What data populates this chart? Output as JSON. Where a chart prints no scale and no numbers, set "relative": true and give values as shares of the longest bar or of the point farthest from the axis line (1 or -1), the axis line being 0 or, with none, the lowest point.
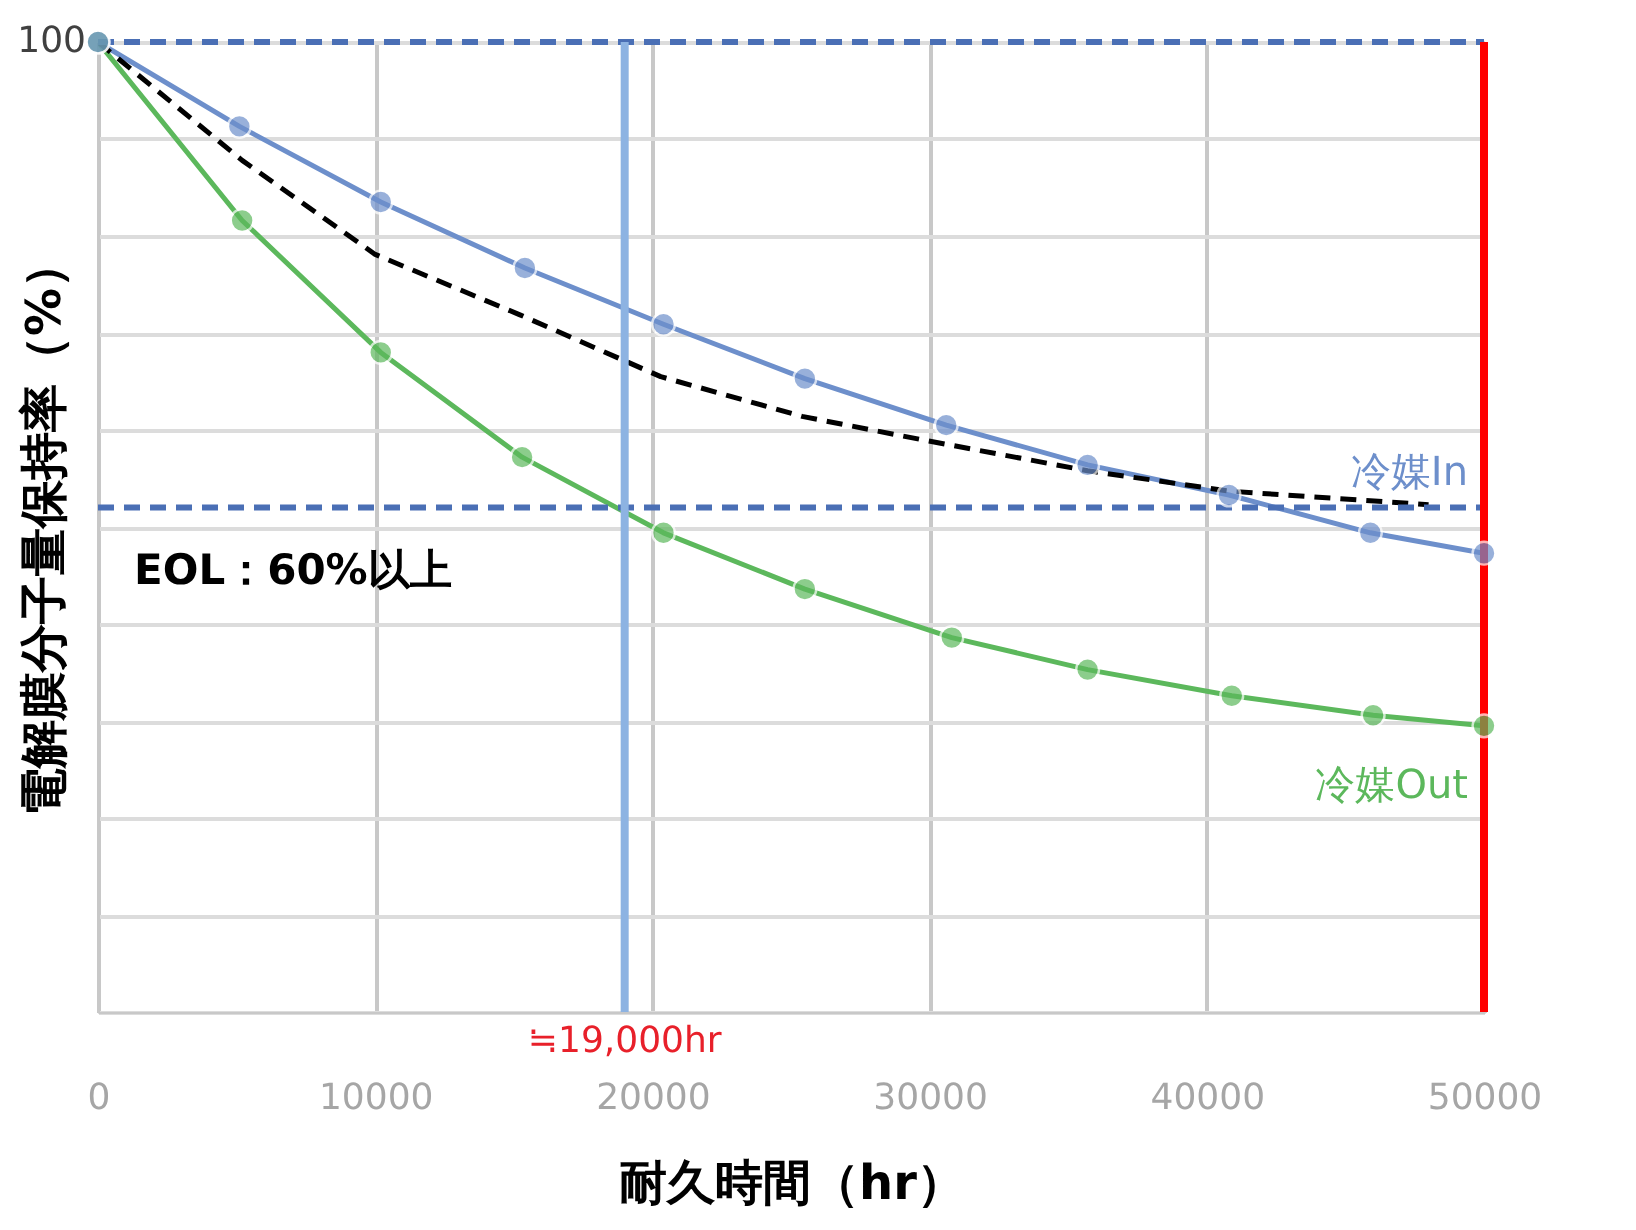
{
  "chart_data": {
    "type": "line",
    "relative": true,
    "xlabel": "耐久時間（hr）",
    "ylabel": "電解膜分子量保持率（%）",
    "xlim": [
      0,
      50000
    ],
    "xticks": [
      0,
      10000,
      20000,
      30000,
      40000,
      50000
    ],
    "annotations": [
      "100"
    ],
    "grid": true,
    "marker": "circle",
    "series": [
      {
        "name": "冷媒In",
        "color": "#6d8fcb",
        "x": [
          0,
          5100,
          10200,
          15400,
          20400,
          25500,
          30600,
          35700,
          40800,
          45900,
          50000
        ],
        "values": [
          1,
          0.913,
          0.835,
          0.767,
          0.709,
          0.653,
          0.605,
          0.564,
          0.533,
          0.494,
          0.473
        ]
      },
      {
        "name": "冷媒Out",
        "color": "#5cb85c",
        "x": [
          0,
          5200,
          10200,
          15300,
          20400,
          25500,
          30800,
          35700,
          40900,
          46000,
          50000
        ],
        "values": [
          1,
          0.816,
          0.68,
          0.572,
          0.494,
          0.436,
          0.386,
          0.353,
          0.326,
          0.306,
          0.295
        ]
      },
      {
        "color": "#000000",
        "marker": "none",
        "line_style": "dashed",
        "x": [
          0,
          5200,
          10000,
          15200,
          20300,
          25400,
          29900,
          35700,
          40800,
          48000
        ],
        "values": [
          1,
          0.878,
          0.781,
          0.719,
          0.655,
          0.614,
          0.589,
          0.558,
          0.537,
          0.523
        ]
      }
    ],
    "ref_lines": [
      {
        "axis": "y",
        "value": 1,
        "color": "#4a6fb5",
        "line_style": "dashed"
      },
      {
        "axis": "y",
        "value": 0.52,
        "label": "EOL：60%以上",
        "color": "#4a6fb5",
        "line_style": "dashed"
      },
      {
        "axis": "x",
        "value": 19000,
        "label": "≒19,000hr",
        "color": "#8db3e2",
        "line_style": "solid"
      },
      {
        "axis": "x",
        "value": 50000,
        "color": "#ff0000",
        "line_style": "solid"
      }
    ]
  }
}
